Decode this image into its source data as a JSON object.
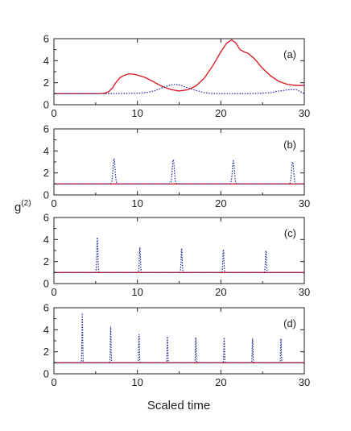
{
  "figure": {
    "ylabel_main": "g",
    "ylabel_sup": "(2)",
    "xlabel": "Scaled time"
  },
  "chart_data": [
    {
      "type": "line",
      "panel_label": "(a)",
      "xlim": [
        0,
        30
      ],
      "ylim": [
        0,
        6
      ],
      "x_ticks": [
        0,
        10,
        20,
        30
      ],
      "y_ticks": [
        0,
        2,
        4,
        6
      ],
      "series": [
        {
          "style": "solid",
          "color": "#d9141e",
          "points": [
            [
              0,
              1.0
            ],
            [
              5,
              1.0
            ],
            [
              6,
              1.03
            ],
            [
              6.5,
              1.15
            ],
            [
              7,
              1.5
            ],
            [
              7.5,
              2.1
            ],
            [
              8,
              2.5
            ],
            [
              8.5,
              2.7
            ],
            [
              9,
              2.8
            ],
            [
              9.5,
              2.78
            ],
            [
              10,
              2.7
            ],
            [
              11,
              2.45
            ],
            [
              12,
              2.05
            ],
            [
              13,
              1.65
            ],
            [
              14,
              1.38
            ],
            [
              15,
              1.25
            ],
            [
              16,
              1.35
            ],
            [
              17,
              1.7
            ],
            [
              18,
              2.4
            ],
            [
              19,
              3.5
            ],
            [
              20,
              4.8
            ],
            [
              20.7,
              5.6
            ],
            [
              21.3,
              5.9
            ],
            [
              21.8,
              5.6
            ],
            [
              22.3,
              5.0
            ],
            [
              22.8,
              4.8
            ],
            [
              23.3,
              4.65
            ],
            [
              24,
              4.2
            ],
            [
              25,
              3.3
            ],
            [
              26,
              2.6
            ],
            [
              27,
              2.1
            ],
            [
              28,
              1.85
            ],
            [
              29,
              1.75
            ],
            [
              30,
              1.75
            ]
          ]
        },
        {
          "style": "dotted",
          "color": "#2b2f9e",
          "points": [
            [
              0,
              1.0
            ],
            [
              6,
              1.0
            ],
            [
              8,
              1.02
            ],
            [
              10,
              1.05
            ],
            [
              11,
              1.1
            ],
            [
              12,
              1.25
            ],
            [
              13,
              1.55
            ],
            [
              14,
              1.8
            ],
            [
              14.5,
              1.85
            ],
            [
              15,
              1.8
            ],
            [
              16,
              1.55
            ],
            [
              17,
              1.3
            ],
            [
              18,
              1.1
            ],
            [
              19,
              1.02
            ],
            [
              20,
              1.0
            ],
            [
              22,
              1.0
            ],
            [
              24,
              1.02
            ],
            [
              26,
              1.1
            ],
            [
              27,
              1.25
            ],
            [
              28,
              1.35
            ],
            [
              29,
              1.38
            ],
            [
              30,
              1.0
            ]
          ]
        }
      ]
    },
    {
      "type": "line",
      "panel_label": "(b)",
      "xlim": [
        0,
        30
      ],
      "ylim": [
        0,
        6
      ],
      "x_ticks": [
        0,
        10,
        20,
        30
      ],
      "y_ticks": [
        0,
        2,
        4,
        6
      ],
      "series": [
        {
          "style": "solid",
          "color": "#d9141e",
          "baseline": 1.0
        },
        {
          "style": "dotted",
          "color": "#2b2f9e",
          "baseline": 1.0,
          "pulse_width": 0.35,
          "peaks": [
            [
              7.2,
              3.3
            ],
            [
              14.3,
              3.2
            ],
            [
              21.5,
              3.1
            ],
            [
              28.6,
              3.0
            ]
          ]
        }
      ]
    },
    {
      "type": "line",
      "panel_label": "(c)",
      "xlim": [
        0,
        30
      ],
      "ylim": [
        0,
        6
      ],
      "x_ticks": [
        0,
        10,
        20,
        30
      ],
      "y_ticks": [
        0,
        2,
        4,
        6
      ],
      "series": [
        {
          "style": "solid",
          "color": "#d9141e",
          "baseline": 1.0
        },
        {
          "style": "dotted",
          "color": "#2b2f9e",
          "baseline": 1.0,
          "pulse_width": 0.18,
          "peaks": [
            [
              5.2,
              4.2
            ],
            [
              10.3,
              3.3
            ],
            [
              15.3,
              3.2
            ],
            [
              20.3,
              3.1
            ],
            [
              25.4,
              3.0
            ]
          ]
        }
      ]
    },
    {
      "type": "line",
      "panel_label": "(d)",
      "xlim": [
        0,
        30
      ],
      "ylim": [
        0,
        6
      ],
      "x_ticks": [
        0,
        10,
        20,
        30
      ],
      "y_ticks": [
        0,
        2,
        4,
        6
      ],
      "series": [
        {
          "style": "solid",
          "color": "#d9141e",
          "baseline": 1.0
        },
        {
          "style": "dotted",
          "color": "#2b2f9e",
          "baseline": 1.0,
          "pulse_width": 0.12,
          "peaks": [
            [
              3.4,
              5.5
            ],
            [
              6.8,
              4.3
            ],
            [
              10.2,
              3.6
            ],
            [
              13.6,
              3.4
            ],
            [
              17.0,
              3.3
            ],
            [
              20.4,
              3.3
            ],
            [
              23.8,
              3.2
            ],
            [
              27.2,
              3.2
            ]
          ]
        }
      ]
    }
  ]
}
